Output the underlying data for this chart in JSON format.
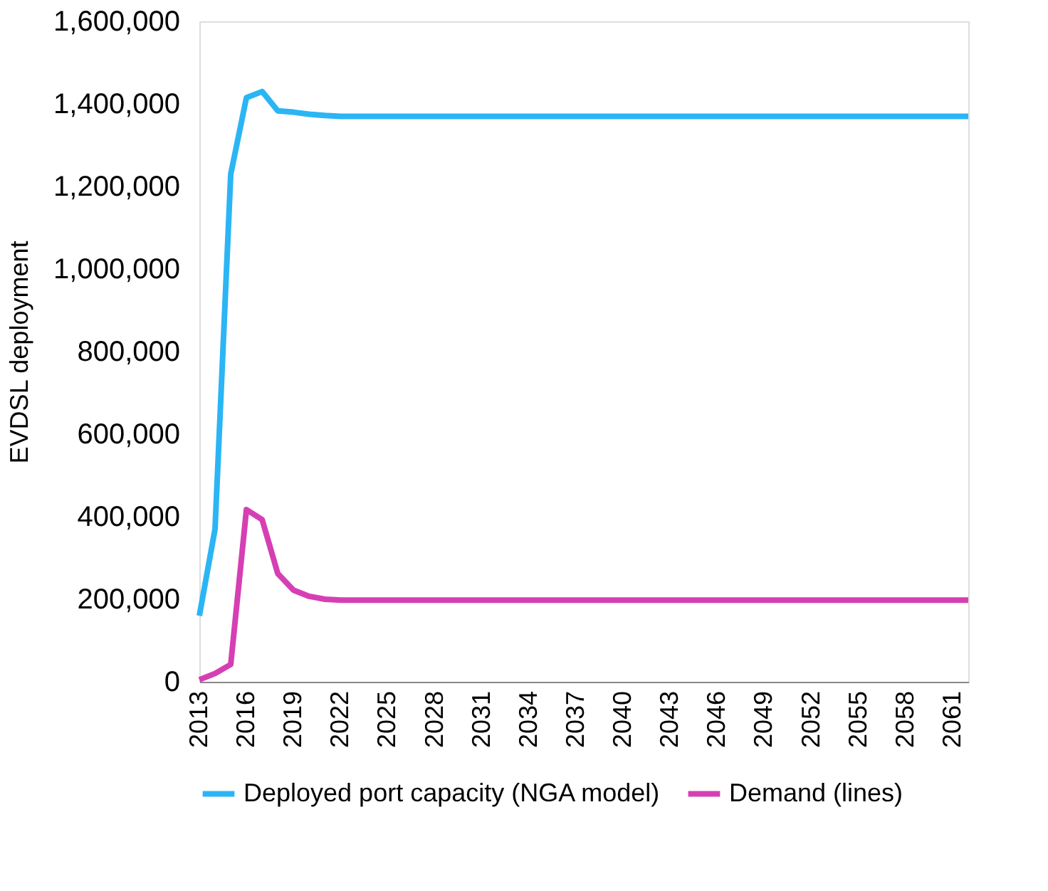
{
  "chart_data": {
    "type": "line",
    "ylabel": "EVDSL deployment",
    "x": [
      2013,
      2014,
      2015,
      2016,
      2017,
      2018,
      2019,
      2020,
      2021,
      2022,
      2025,
      2030,
      2040,
      2050,
      2062
    ],
    "series": [
      {
        "name": "Deployed port capacity (NGA model)",
        "color": "#2bb5f5",
        "values": [
          160000,
          370000,
          1230000,
          1415000,
          1430000,
          1383000,
          1380000,
          1375000,
          1372000,
          1370000,
          1370000,
          1370000,
          1370000,
          1370000,
          1370000
        ]
      },
      {
        "name": "Demand (lines)",
        "color": "#d63fb4",
        "values": [
          5000,
          20000,
          42000,
          417000,
          393000,
          262000,
          222000,
          207000,
          200000,
          198000,
          198000,
          198000,
          198000,
          198000,
          198000
        ]
      }
    ],
    "xlim": [
      2013,
      2062
    ],
    "xticks": [
      2013,
      2016,
      2019,
      2022,
      2025,
      2028,
      2031,
      2034,
      2037,
      2040,
      2043,
      2046,
      2049,
      2052,
      2055,
      2058,
      2061
    ],
    "ylim": [
      0,
      1600000
    ],
    "yticks": [
      0,
      {
        "value": 200000,
        "label": "200,000"
      },
      {
        "value": 400000,
        "label": "400,000"
      },
      {
        "value": 600000,
        "label": "600,000"
      },
      {
        "value": 800000,
        "label": "800,000"
      },
      {
        "value": 1000000,
        "label": "1,000,000"
      },
      {
        "value": 1200000,
        "label": "1,200,000"
      },
      {
        "value": 1400000,
        "label": "1,400,000"
      },
      {
        "value": 1600000,
        "label": "1,600,000"
      }
    ],
    "grid": false,
    "legend": "bottom",
    "marker": "none",
    "line_style": "solid"
  }
}
